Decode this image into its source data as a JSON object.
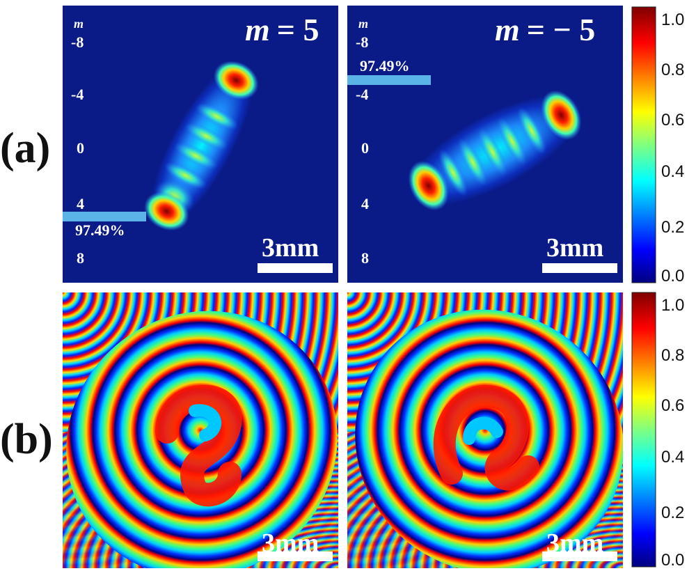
{
  "rows": {
    "a_label": "(a)",
    "b_label": "(b)"
  },
  "panels": {
    "a_left": {
      "title_symbol": "m",
      "title_value": "= 5",
      "axis_symbol": "m",
      "ticks": [
        "-8",
        "-4",
        "0",
        "4",
        "8"
      ],
      "efficiency": "97.49%",
      "scale_bar": "3mm"
    },
    "a_right": {
      "title_symbol": "m",
      "title_value": "= − 5",
      "axis_symbol": "m",
      "ticks": [
        "-8",
        "-4",
        "0",
        "4",
        "8"
      ],
      "efficiency": "97.49%",
      "scale_bar": "3mm"
    },
    "b_left": {
      "scale_bar": "3mm"
    },
    "b_right": {
      "scale_bar": "3mm"
    }
  },
  "colorbars": {
    "a": {
      "ticks": [
        "1.0",
        "0.8",
        "0.6",
        "0.4",
        "0.2",
        "0.0"
      ]
    },
    "b": {
      "ticks": [
        "1.0",
        "0.8",
        "0.6",
        "0.4",
        "0.2",
        "0.0"
      ]
    }
  },
  "colors": {
    "background_blue": "#0a1a86",
    "jet_dark_blue": "#00007f",
    "jet_blue": "#0000ff",
    "jet_cyan": "#00ffff",
    "jet_yellow": "#ffff00",
    "jet_red": "#ff0000",
    "jet_dark_red": "#7f0000",
    "efficiency_bar": "#5ab4e8"
  }
}
